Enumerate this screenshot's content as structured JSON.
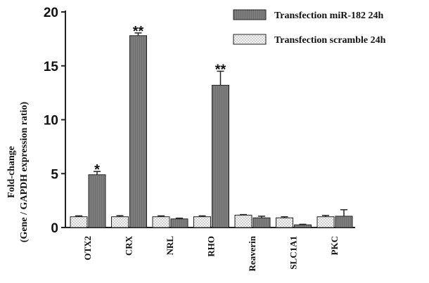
{
  "chart_data": {
    "type": "bar",
    "title": "",
    "xlabel": "",
    "ylabel_line1": "Fold-change",
    "ylabel_line2": "(Gene / GAPDH expression ratio)",
    "ylim": [
      0,
      20
    ],
    "yticks": [
      "0",
      "5",
      "10",
      "15",
      "20"
    ],
    "categories": [
      "OTX2",
      "CRX",
      "NRL",
      "RHO",
      "Reaverin",
      "SLC1A1",
      "PKC"
    ],
    "series": [
      {
        "name": "Transfection scramble 24h",
        "values": [
          1.0,
          1.0,
          1.0,
          1.0,
          1.15,
          0.9,
          1.0
        ],
        "errors": [
          0.08,
          0.1,
          0.08,
          0.08,
          0.05,
          0.1,
          0.12
        ],
        "color": "#f2f2f2",
        "pattern": "dotted"
      },
      {
        "name": "Transfection miR-182 24h",
        "values": [
          4.9,
          17.8,
          0.8,
          13.2,
          0.9,
          0.25,
          1.05
        ],
        "errors": [
          0.3,
          0.25,
          0.07,
          1.3,
          0.15,
          0.05,
          0.6
        ],
        "color": "#7a7a7a",
        "pattern": "hatched"
      }
    ],
    "annotations": [
      {
        "category": "OTX2",
        "text": "*"
      },
      {
        "category": "CRX",
        "text": "**"
      },
      {
        "category": "RHO",
        "text": "**"
      }
    ],
    "legend": {
      "position": "top-right",
      "entries": [
        "Transfection miR-182 24h",
        "Transfection scramble 24h"
      ]
    },
    "grid": false
  }
}
